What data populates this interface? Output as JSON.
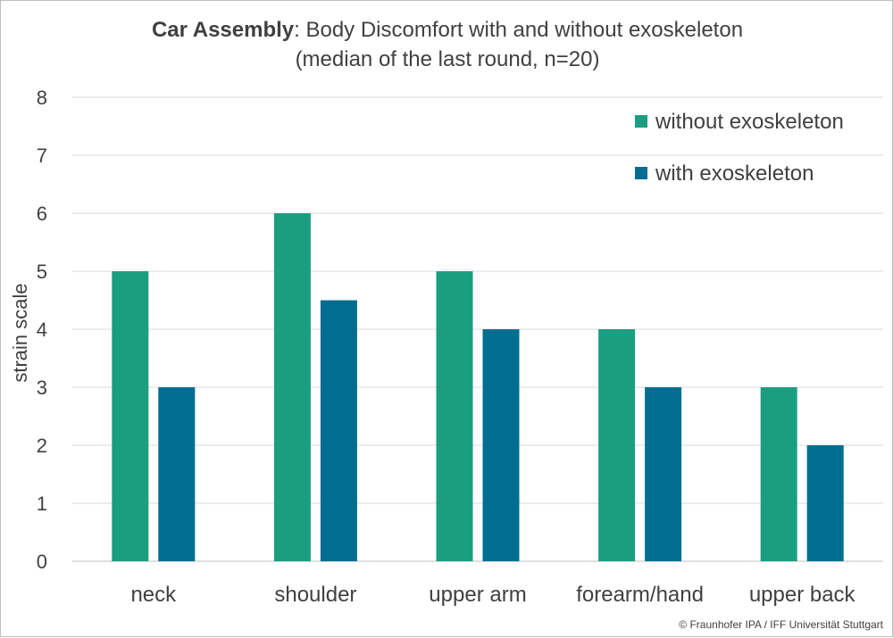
{
  "chart_data": {
    "type": "bar",
    "title_bold": "Car Assembly",
    "title_rest": ": Body Discomfort with and without exoskeleton",
    "subtitle": "(median of the last round, n=20)",
    "ylabel": "strain scale",
    "xlabel": "",
    "ylim": [
      0,
      8
    ],
    "yticks": [
      "0",
      "1",
      "2",
      "3",
      "4",
      "5",
      "6",
      "7",
      "8"
    ],
    "grid": true,
    "legend_position": "top-right",
    "categories": [
      "neck",
      "shoulder",
      "upper arm",
      "forearm/hand",
      "upper back"
    ],
    "series": [
      {
        "name": "without exoskeleton",
        "color": "#1a9e80",
        "values": [
          5,
          6,
          5,
          4,
          3
        ]
      },
      {
        "name": "with exoskeleton",
        "color": "#006d91",
        "values": [
          3,
          4.5,
          4,
          3,
          2
        ]
      }
    ]
  },
  "footer": {
    "copyright": "© Fraunhofer IPA / IFF Universität Stuttgart"
  }
}
